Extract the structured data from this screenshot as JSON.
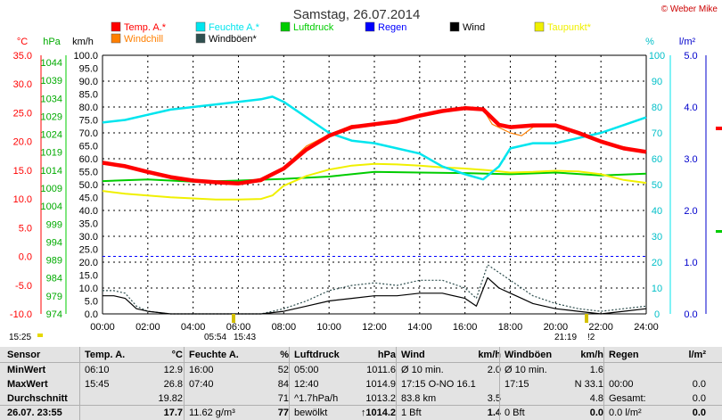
{
  "title": "Samstag, 26.07.2014",
  "brand": "© Weber Mike",
  "legend": [
    {
      "label": "Temp. A.*",
      "color": "#ff0000"
    },
    {
      "label": "Feuchte A.*",
      "color": "#00e5ee"
    },
    {
      "label": "Luftdruck",
      "color": "#00cc00"
    },
    {
      "label": "Regen",
      "color": "#0000ff"
    },
    {
      "label": "Wind",
      "color": "#000000"
    },
    {
      "label": "Taupunkt*",
      "color": "#f0f000"
    },
    {
      "label": "Windchill",
      "color": "#ff7f00"
    },
    {
      "label": "Windböen*",
      "color": "#2f4f4f"
    }
  ],
  "axis_units": {
    "temp": "°C",
    "pressure": "hPa",
    "wind": "km/h",
    "humidity": "%",
    "rain": "l/m²"
  },
  "side_markers": {
    "left_time": "15:25",
    "sunrise": "05:54",
    "sunrise2": "15:43",
    "sunset": "21:19",
    "sunset2": "!2"
  },
  "chart_data": {
    "type": "line",
    "x_ticks": [
      "00:00",
      "02:00",
      "04:00",
      "06:00",
      "08:00",
      "10:00",
      "12:00",
      "14:00",
      "16:00",
      "18:00",
      "20:00",
      "22:00",
      "24:00"
    ],
    "temp_ticks": [
      "35.0",
      "30.0",
      "25.0",
      "20.0",
      "15.0",
      "10.0",
      "5.0",
      "0.0",
      "-5.0",
      "-10.0"
    ],
    "pressure_ticks": [
      "1044",
      "1039",
      "1034",
      "1029",
      "1024",
      "1019",
      "1014",
      "1009",
      "1004",
      "999",
      "994",
      "989",
      "984",
      "979",
      "974"
    ],
    "wind_ticks": [
      "100.0",
      "95.0",
      "90.0",
      "85.0",
      "80.0",
      "75.0",
      "70.0",
      "65.0",
      "60.0",
      "55.0",
      "50.0",
      "45.0",
      "40.0",
      "35.0",
      "30.0",
      "25.0",
      "20.0",
      "15.0",
      "10.0",
      "5.0",
      "0.0"
    ],
    "humidity_ticks": [
      "100",
      "90",
      "80",
      "70",
      "60",
      "50",
      "40",
      "30",
      "20",
      "10",
      "0"
    ],
    "rain_ticks": [
      "5.0",
      "4.0",
      "3.0",
      "2.0",
      "1.0",
      "0.0"
    ],
    "xlim": [
      0,
      24
    ],
    "temp_lim": [
      -10,
      35
    ],
    "series": [
      {
        "name": "Temp. A.*",
        "color": "#ff0000",
        "axis": "temp",
        "x": [
          0,
          1,
          2,
          3,
          4,
          5,
          6,
          6.5,
          7,
          8,
          9,
          10,
          11,
          12,
          13,
          14,
          15,
          16,
          16.8,
          17.5,
          18,
          19,
          20,
          21,
          22,
          23,
          24
        ],
        "y": [
          16.3,
          15.7,
          14.7,
          13.8,
          13.2,
          12.9,
          12.7,
          13.0,
          13.3,
          15.3,
          18.6,
          21.0,
          22.5,
          23.0,
          23.5,
          24.5,
          25.3,
          25.8,
          25.6,
          22.9,
          22.5,
          22.8,
          22.8,
          21.5,
          20.0,
          18.8,
          18.2
        ]
      },
      {
        "name": "Windchill",
        "color": "#ff7f00",
        "axis": "temp",
        "x": [
          0,
          2,
          4,
          6,
          7,
          8,
          9,
          10,
          11,
          12,
          13,
          14,
          15,
          16,
          16.8,
          17.2,
          18,
          18.5,
          19,
          20,
          22,
          24
        ],
        "y": [
          16.3,
          14.7,
          13.2,
          12.7,
          13.0,
          15.5,
          19.2,
          21.2,
          22.8,
          23.0,
          23.5,
          24.5,
          25.3,
          25.8,
          25.6,
          23.0,
          21.5,
          21.0,
          22.5,
          22.8,
          20.0,
          18.2
        ]
      },
      {
        "name": "Taupunkt*",
        "color": "#f0f000",
        "axis": "temp",
        "x": [
          0,
          1,
          2,
          3,
          4,
          5,
          6,
          7,
          7.5,
          8,
          9,
          10,
          11,
          12,
          13,
          14,
          15,
          16,
          17,
          18,
          19,
          20,
          21,
          22,
          23,
          24
        ],
        "y": [
          11.4,
          10.9,
          10.6,
          10.3,
          10.1,
          9.9,
          9.9,
          10.0,
          10.6,
          12.3,
          14.0,
          15.1,
          15.8,
          16.1,
          16.0,
          15.8,
          15.5,
          15.3,
          15.0,
          14.6,
          14.7,
          14.9,
          14.8,
          14.3,
          13.3,
          12.8
        ]
      },
      {
        "name": "Luftdruck",
        "color": "#00cc00",
        "axis": "temp",
        "x": [
          0,
          2,
          4,
          6,
          8,
          10,
          12,
          14,
          16,
          18,
          20,
          22,
          24
        ],
        "y": [
          13.1,
          13.4,
          13.0,
          13.2,
          13.5,
          13.9,
          14.7,
          14.6,
          14.5,
          14.3,
          14.6,
          14.1,
          14.4
        ]
      },
      {
        "name": "Feuchte A.*",
        "color": "#00e5ee",
        "axis": "humidity",
        "x": [
          0,
          1,
          2,
          3,
          4,
          5,
          6,
          7,
          7.5,
          8,
          9,
          10,
          11,
          12,
          13,
          14,
          15,
          16,
          16.8,
          17.5,
          18,
          19,
          20,
          21,
          22,
          23,
          24
        ],
        "y": [
          74,
          75,
          77,
          79,
          80,
          81,
          82,
          83,
          84,
          82,
          76,
          70,
          67,
          66,
          64,
          62,
          57,
          54,
          52,
          57,
          64,
          66,
          66,
          68,
          70,
          73,
          76
        ]
      },
      {
        "name": "Wind",
        "color": "#000000",
        "axis": "wind",
        "x": [
          0,
          0.5,
          1,
          1.5,
          2,
          3,
          4,
          5,
          6,
          7,
          8,
          9,
          10,
          11,
          12,
          13,
          14,
          15,
          16,
          16.5,
          17,
          17.5,
          18,
          18.5,
          19,
          20,
          21,
          22,
          23,
          24
        ],
        "y": [
          7,
          7,
          6,
          2,
          1,
          0,
          0,
          0,
          0,
          0,
          1,
          3,
          5,
          6,
          7,
          7,
          8,
          8,
          6,
          3,
          14,
          10,
          8,
          6,
          4,
          2,
          1,
          0,
          1,
          2
        ]
      },
      {
        "name": "Windböen*",
        "color": "#2f4f4f",
        "axis": "wind",
        "x": [
          0,
          0.5,
          1,
          1.5,
          2,
          3,
          4,
          5,
          6,
          7,
          8,
          9,
          10,
          11,
          12,
          13,
          14,
          15,
          16,
          16.5,
          17,
          17.5,
          18,
          18.5,
          19,
          20,
          21,
          22,
          23,
          24
        ],
        "y": [
          9,
          9,
          8,
          3,
          1,
          0,
          0,
          0,
          0,
          0,
          2,
          5,
          9,
          11,
          12,
          11,
          13,
          13,
          10,
          6,
          19,
          16,
          13,
          10,
          7,
          4,
          2,
          1,
          2,
          3
        ]
      }
    ],
    "pressure_ref": 989,
    "grid": true
  },
  "table": {
    "headers": [
      {
        "label": "Sensor",
        "unit": ""
      },
      {
        "label": "Temp. A.",
        "unit": "°C"
      },
      {
        "label": "Feuchte A.",
        "unit": "%"
      },
      {
        "label": "Luftdruck",
        "unit": "hPa"
      },
      {
        "label": "Wind",
        "unit": "km/h"
      },
      {
        "label": "Windböen",
        "unit": "km/h"
      },
      {
        "label": "Regen",
        "unit": "l/m²"
      }
    ],
    "rows": [
      {
        "label": "MinWert",
        "cells": [
          [
            "06:10",
            "12.9"
          ],
          [
            "16:00",
            "52"
          ],
          [
            "05:00",
            "1011.6"
          ],
          [
            "Ø 10 min.",
            "2.0"
          ],
          [
            "Ø 10 min.",
            "1.6"
          ],
          [
            "",
            ""
          ]
        ]
      },
      {
        "label": "MaxWert",
        "cells": [
          [
            "15:45",
            "26.8"
          ],
          [
            "07:40",
            "84"
          ],
          [
            "12:40",
            "1014.9"
          ],
          [
            "17:15  O-NO 16.1",
            ""
          ],
          [
            "17:15",
            "N 33.1"
          ],
          [
            "00:00",
            "0.0"
          ]
        ]
      },
      {
        "label": "Durchschnitt",
        "cells": [
          [
            "",
            "19.82"
          ],
          [
            "",
            "71"
          ],
          [
            "^1.7hPa/h",
            "1013.2"
          ],
          [
            "83.8 km",
            "3.5"
          ],
          [
            "",
            "4.8"
          ],
          [
            "Gesamt:",
            "0.0"
          ]
        ]
      },
      {
        "label": "26.07.  23:55",
        "cells": [
          [
            "",
            "17.7"
          ],
          [
            "11.62 g/m³",
            "77"
          ],
          [
            "bewölkt",
            "↑1014.2"
          ],
          [
            "1 Bft",
            "1.4"
          ],
          [
            "0 Bft",
            "0.0"
          ],
          [
            "0.0 l/m²",
            "0.0"
          ]
        ]
      }
    ]
  }
}
